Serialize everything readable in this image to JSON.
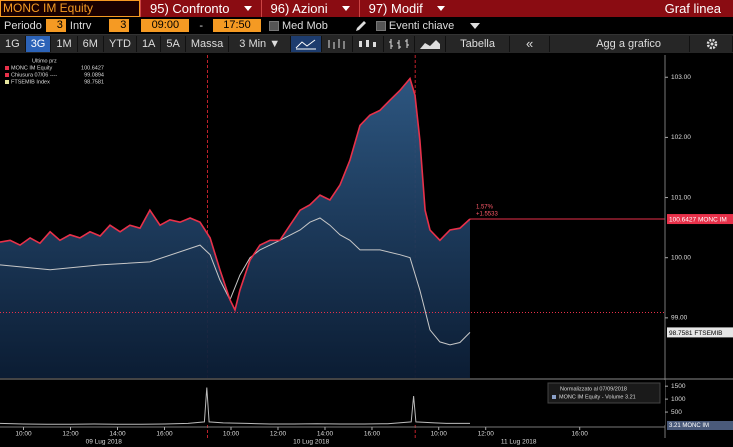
{
  "toolbar": {
    "security": "MONC IM Equity",
    "menu": [
      "95) Confronto",
      "96) Azioni",
      "97) Modif"
    ],
    "title": "Graf linea"
  },
  "settings": {
    "period_label": "Periodo",
    "period": "3",
    "interval_label": "Intrv",
    "interval": "3",
    "start": "09:00",
    "dash": "-",
    "end": "17:50",
    "moving_avg": "Med Mob",
    "key_events": "Eventi chiave"
  },
  "buttons": [
    "1G",
    "3G",
    "1M",
    "6M",
    "YTD",
    "1A",
    "5A",
    "Massa",
    "3 Min ▼",
    "Tabella",
    "«",
    "Agg a grafico"
  ],
  "selected_button": 1,
  "chart_data": {
    "type": "line",
    "legend_title": "Ultimo prz",
    "xlim": [
      0,
      28.3
    ],
    "ylim": [
      98.0,
      103.37
    ],
    "yticks": [
      {
        "value": 99,
        "label": "99.00"
      },
      {
        "value": 100,
        "label": "100.00"
      },
      {
        "value": 101,
        "label": "101.00"
      },
      {
        "value": 102,
        "label": "102.00"
      },
      {
        "value": 103,
        "label": "103.00"
      }
    ],
    "xticks": [
      {
        "value": 1,
        "label": "10:00"
      },
      {
        "value": 3,
        "label": "12:00"
      },
      {
        "value": 5,
        "label": "14:00"
      },
      {
        "value": 7,
        "label": "16:00"
      },
      {
        "value": 9.83,
        "label": "10:00"
      },
      {
        "value": 11.83,
        "label": "12:00"
      },
      {
        "value": 13.83,
        "label": "14:00"
      },
      {
        "value": 15.83,
        "label": "16:00"
      },
      {
        "value": 18.67,
        "label": "10:00"
      },
      {
        "value": 20.67,
        "label": "12:00"
      },
      {
        "value": 24.67,
        "label": "16:00"
      }
    ],
    "day_breaks": [
      8.83,
      17.67
    ],
    "day_labels": [
      "09 Lug 2018",
      "10 Lug 2018",
      "11 Lug 2018"
    ],
    "series": [
      {
        "name": "MONC IM Equity",
        "color": "#e8314a",
        "legend_value": 100.6427,
        "tag": "MONC IM",
        "x": [
          0,
          0.43,
          0.85,
          1.28,
          1.7,
          2.13,
          2.55,
          2.98,
          3.4,
          3.83,
          4.26,
          4.68,
          5.11,
          5.53,
          5.96,
          6.38,
          6.81,
          7.23,
          7.66,
          8.09,
          8.51,
          8.94,
          9.36,
          9.79,
          10.0,
          10.21,
          10.64,
          11.06,
          11.49,
          11.91,
          12.34,
          12.77,
          13.19,
          13.62,
          14.04,
          14.47,
          14.89,
          15.32,
          15.74,
          16.17,
          16.6,
          17.02,
          17.45,
          17.66,
          17.87,
          18.09,
          18.3,
          18.72,
          19.15,
          19.57,
          20.0
        ],
        "values": [
          100.26,
          100.29,
          100.21,
          100.33,
          100.24,
          100.43,
          100.29,
          100.38,
          100.33,
          100.43,
          100.36,
          100.54,
          100.43,
          100.54,
          100.49,
          100.79,
          100.54,
          100.63,
          100.59,
          100.66,
          100.59,
          100.33,
          99.8,
          99.3,
          99.13,
          99.46,
          99.96,
          100.21,
          100.29,
          100.29,
          100.54,
          100.79,
          100.88,
          101.04,
          100.96,
          101.21,
          101.62,
          102.2,
          102.37,
          102.45,
          102.62,
          102.78,
          102.98,
          102.7,
          101.95,
          100.79,
          100.46,
          100.29,
          100.46,
          100.49,
          100.6427
        ]
      },
      {
        "name": "FTSEMIB Index",
        "color": "#c8c8c8",
        "legend_value": 98.7581,
        "tag": "FTSEMIB",
        "x": [
          0,
          2.13,
          4.26,
          6.38,
          8.51,
          8.94,
          9.36,
          9.79,
          10.21,
          10.64,
          11.06,
          11.91,
          12.77,
          13.19,
          13.62,
          14.04,
          14.47,
          14.89,
          15.32,
          16.17,
          17.02,
          17.45,
          17.87,
          18.3,
          18.72,
          19.15,
          19.57,
          20.0
        ],
        "values": [
          99.88,
          99.8,
          99.88,
          99.93,
          100.21,
          100.05,
          99.63,
          99.3,
          99.71,
          100.0,
          100.13,
          100.29,
          100.46,
          100.59,
          100.66,
          100.54,
          100.38,
          100.29,
          100.13,
          100.13,
          100.05,
          100.0,
          99.46,
          98.8,
          98.6,
          98.55,
          98.59,
          98.7581
        ]
      }
    ],
    "reference": {
      "name": "Chiusura 07/06 ----",
      "value": 99.0894,
      "color": "#e8314a"
    },
    "annotations": [
      "1.57%",
      "+1.5533"
    ],
    "volume": {
      "legend_title": "Normalizzato al 07/09/2018",
      "name": "MONC IM Equity - Volume 3.21",
      "tag": "3.21 MONC IM",
      "color": "#bbbbbb",
      "ylim": [
        0,
        1700
      ],
      "yticks": [
        500,
        1000,
        1500
      ],
      "x": [
        0,
        1,
        2,
        3,
        4,
        5,
        6,
        7,
        8,
        8.7,
        8.8,
        8.9,
        9.5,
        10.5,
        11.5,
        12.5,
        13.5,
        14.5,
        15.5,
        16.5,
        17.5,
        17.6,
        17.7,
        18.5,
        19.0,
        20.0
      ],
      "values": [
        60,
        40,
        30,
        30,
        40,
        30,
        30,
        40,
        60,
        120,
        1450,
        120,
        80,
        60,
        40,
        40,
        50,
        40,
        40,
        50,
        120,
        1120,
        120,
        80,
        60,
        60
      ]
    }
  }
}
